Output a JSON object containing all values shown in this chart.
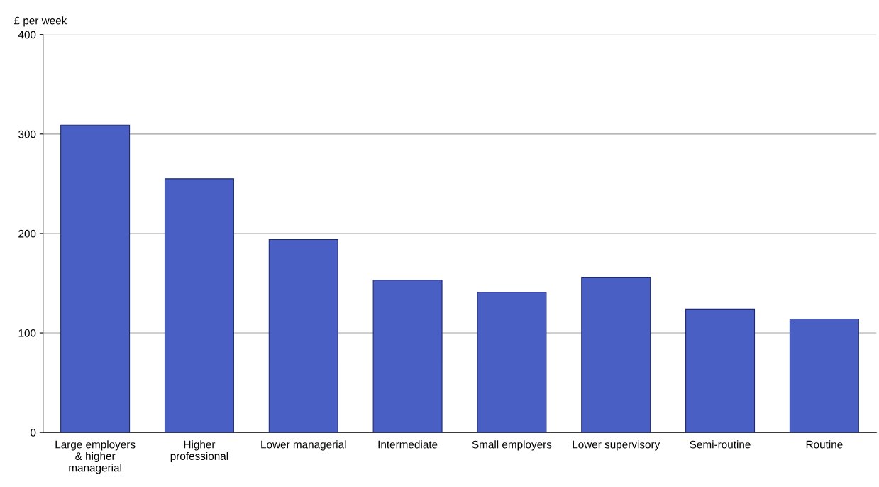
{
  "chart_data": {
    "type": "bar",
    "ylabel": "£ per week",
    "categories": [
      "Large employers\n& higher\nmanagerial",
      "Higher\nprofessional",
      "Lower managerial",
      "Intermediate",
      "Small employers",
      "Lower supervisory",
      "Semi-routine",
      "Routine"
    ],
    "values": [
      309,
      255,
      194,
      153,
      141,
      156,
      124,
      114
    ],
    "color": "#4a5fc4",
    "ylim": [
      0,
      400
    ],
    "yticks": [
      0,
      100,
      200,
      300,
      400
    ],
    "grid": "y",
    "legend": false
  }
}
